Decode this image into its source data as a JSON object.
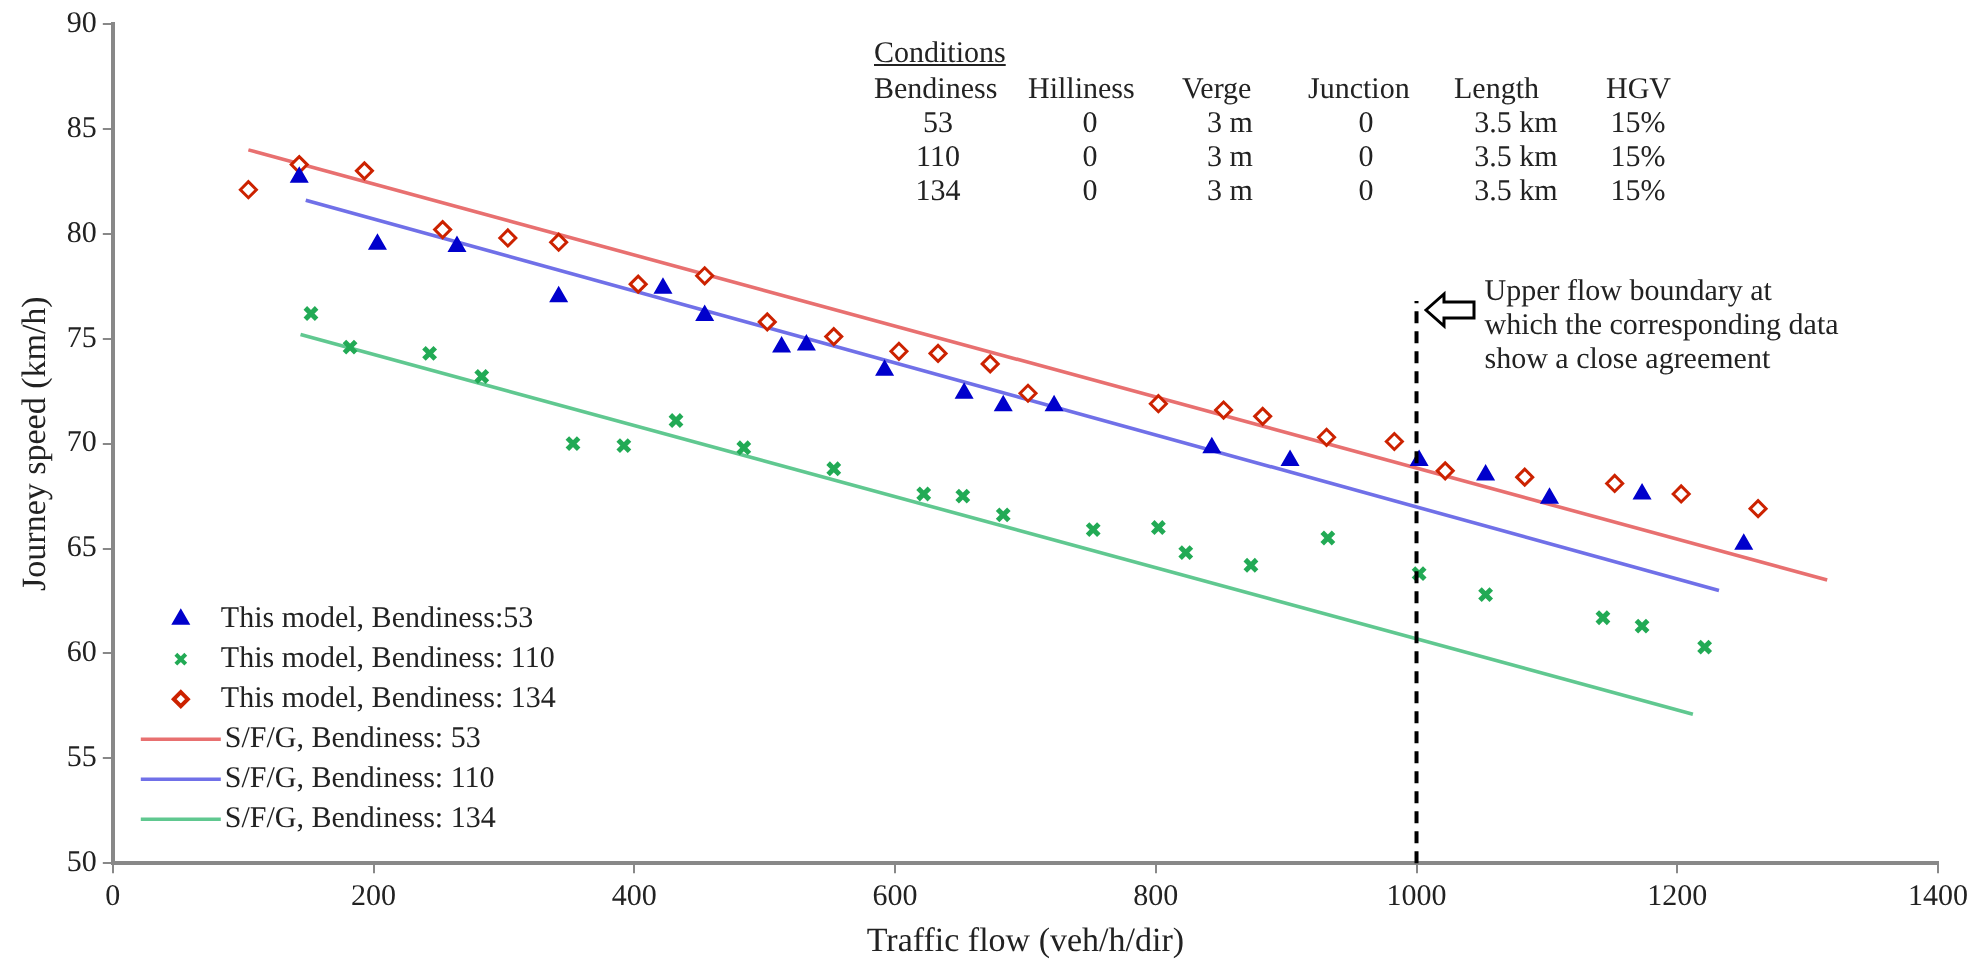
{
  "chart_data": {
    "type": "scatter",
    "xlabel": "Traffic flow (veh/h/dir)",
    "ylabel": "Journey speed (km/h)",
    "xlim": [
      0,
      1400
    ],
    "xticks": [
      0,
      200,
      400,
      600,
      800,
      1000,
      1200,
      1400
    ],
    "ylim": [
      50,
      90
    ],
    "yticks": [
      50,
      55,
      60,
      65,
      70,
      75,
      80,
      85,
      90
    ],
    "grid": false,
    "legend": "bottom left",
    "series": [
      {
        "name": "This model, Bendiness:53",
        "type": "scatter",
        "marker": "triangle",
        "color": "#0000cc",
        "x": [
          143,
          203,
          264,
          342,
          422,
          454,
          513,
          532,
          592,
          653,
          683,
          722,
          843,
          903,
          1002,
          1053,
          1102,
          1173,
          1251
        ],
        "values": [
          82.7,
          79.5,
          79.4,
          77.0,
          77.4,
          76.1,
          74.6,
          74.7,
          73.5,
          72.4,
          71.8,
          71.8,
          69.8,
          69.2,
          69.2,
          68.5,
          67.4,
          67.6,
          65.2
        ]
      },
      {
        "name": "This model, Bendiness: 110",
        "type": "scatter",
        "marker": "cross",
        "color": "#22aa55",
        "x": [
          152,
          182,
          243,
          283,
          353,
          392,
          432,
          484,
          553,
          622,
          652,
          683,
          752,
          802,
          823,
          873,
          932,
          1002,
          1053,
          1143,
          1173,
          1221
        ],
        "values": [
          76.2,
          74.6,
          74.3,
          73.2,
          70.0,
          69.9,
          71.1,
          69.8,
          68.8,
          67.6,
          67.5,
          66.6,
          65.9,
          66.0,
          64.8,
          64.2,
          65.5,
          63.8,
          62.8,
          61.7,
          61.3,
          60.3
        ]
      },
      {
        "name": "This model, Bendiness: 134",
        "type": "scatter",
        "marker": "diamond",
        "color": "#cc2200",
        "x": [
          104,
          143,
          193,
          253,
          303,
          342,
          403,
          454,
          502,
          553,
          603,
          633,
          673,
          702,
          802,
          852,
          882,
          931,
          983,
          1022,
          1083,
          1152,
          1203,
          1262
        ],
        "values": [
          82.1,
          83.3,
          83.0,
          80.2,
          79.8,
          79.6,
          77.6,
          78.0,
          75.8,
          75.1,
          74.4,
          74.3,
          73.8,
          72.4,
          71.9,
          71.6,
          71.3,
          70.3,
          70.1,
          68.7,
          68.4,
          68.1,
          67.6,
          66.9
        ]
      },
      {
        "name": "S/F/G, Bendiness: 53",
        "type": "line",
        "marker": "none",
        "line_style": "solid",
        "color": "#e87070",
        "x": [
          104,
          1315
        ],
        "values": [
          84.0,
          63.5
        ]
      },
      {
        "name": "S/F/G, Bendiness: 110",
        "type": "line",
        "marker": "none",
        "line_style": "solid",
        "color": "#7070e8",
        "x": [
          148,
          1232
        ],
        "values": [
          81.6,
          63.0
        ]
      },
      {
        "name": "S/F/G, Bendiness: 134",
        "type": "line",
        "marker": "none",
        "line_style": "solid",
        "color": "#60c890",
        "x": [
          144,
          1212
        ],
        "values": [
          75.2,
          57.1
        ]
      }
    ],
    "ref_lines": [
      {
        "axis": "x",
        "value": 1000,
        "color": "#000000",
        "line_style": "dashed"
      }
    ],
    "annotations": [
      {
        "text": "Upper flow boundary at which the corresponding data show a close agreement",
        "x": 1000,
        "y": 74
      },
      "Conditions",
      "Bendiness",
      "Hilliness",
      "Verge",
      "Junction",
      "Length",
      "HGV",
      "53",
      "0",
      "3 m",
      "0",
      "3.5 km",
      "15%",
      "110",
      "0",
      "3 m",
      "0",
      "3.5 km",
      "15%",
      "134",
      "0",
      "3 m",
      "0",
      "3.5 km",
      "15%"
    ]
  }
}
